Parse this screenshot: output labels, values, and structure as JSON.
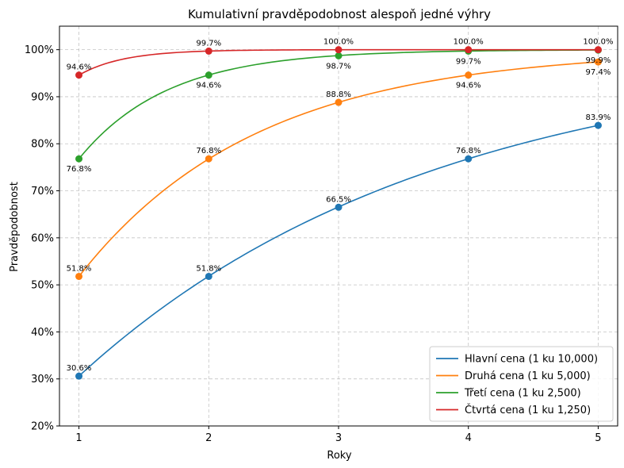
{
  "chart_data": {
    "type": "line",
    "title": "Kumulativní pravděpodobnost alespoň jedné výhry",
    "xlabel": "Roky",
    "ylabel": "Pravděpodobnost",
    "x": [
      1,
      2,
      3,
      4,
      5
    ],
    "xlim": [
      0.85,
      5.15
    ],
    "ylim": [
      20,
      105
    ],
    "yticks": [
      20,
      30,
      40,
      50,
      60,
      70,
      80,
      90,
      100
    ],
    "ytick_labels": [
      "20%",
      "30%",
      "40%",
      "50%",
      "60%",
      "70%",
      "80%",
      "90%",
      "100%"
    ],
    "xtick_labels": [
      "1",
      "2",
      "3",
      "4",
      "5"
    ],
    "grid": true,
    "legend_position": "bottom-right",
    "series": [
      {
        "name": "Hlavní cena (1 ku 10,000)",
        "color": "#1f77b4",
        "values": [
          30.6,
          51.8,
          66.5,
          76.8,
          83.9
        ],
        "labels": [
          "30.6%",
          "51.8%",
          "66.5%",
          "76.8%",
          "83.9%"
        ],
        "label_side": [
          "above",
          "above",
          "above",
          "above",
          "above"
        ]
      },
      {
        "name": "Druhá cena (1 ku 5,000)",
        "color": "#ff7f0e",
        "values": [
          51.8,
          76.8,
          88.8,
          94.6,
          97.4
        ],
        "labels": [
          "51.8%",
          "76.8%",
          "88.8%",
          "94.6%",
          "97.4%"
        ],
        "label_side": [
          "above",
          "above",
          "above",
          "below",
          "below"
        ]
      },
      {
        "name": "Třetí cena (1 ku 2,500)",
        "color": "#2ca02c",
        "values": [
          76.8,
          94.6,
          98.7,
          99.7,
          99.9
        ],
        "labels": [
          "76.8%",
          "94.6%",
          "98.7%",
          "99.7%",
          "99.9%"
        ],
        "label_side": [
          "below",
          "below",
          "below",
          "below",
          "below"
        ]
      },
      {
        "name": "Čtvrtá cena (1 ku 1,250)",
        "color": "#d62728",
        "values": [
          94.6,
          99.7,
          100.0,
          100.0,
          100.0
        ],
        "labels": [
          "94.6%",
          "99.7%",
          "100.0%",
          "100.0%",
          "100.0%"
        ],
        "label_side": [
          "above",
          "above",
          "above",
          "above",
          "above"
        ]
      }
    ]
  }
}
